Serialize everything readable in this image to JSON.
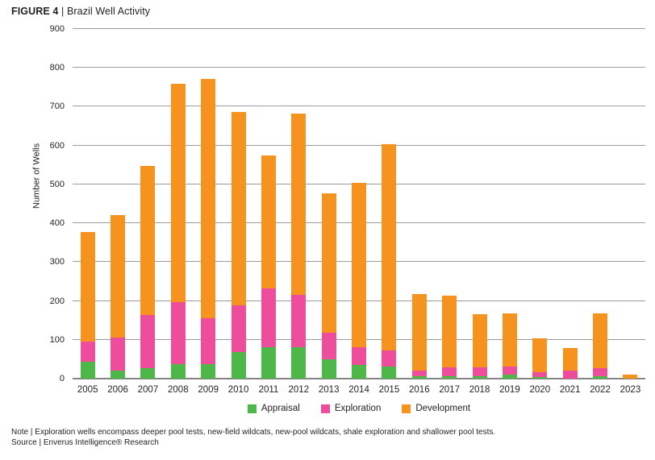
{
  "header": {
    "figure_label": "FIGURE 4",
    "separator": " | ",
    "title": "Brazil Well Activity"
  },
  "footer": {
    "note": "Note | Exploration wells encompass deeper pool tests, new-field wildcats, new-pool wildcats, shale exploration and shallower pool tests.",
    "source": "Source | Enverus Intelligence® Research"
  },
  "colors": {
    "appraisal": "#4DB748",
    "exploration": "#EE4D9B",
    "development": "#F6921E",
    "gridline": "#9B9B9B",
    "baseline": "#848484",
    "text": "#231F20"
  },
  "chart_data": {
    "type": "bar",
    "stacked": true,
    "title": "Brazil Well Activity",
    "xlabel": "",
    "ylabel": "Number of Wells",
    "ylim": [
      0,
      900
    ],
    "ytick_step": 100,
    "grid": "horizontal",
    "legend_position": "bottom",
    "categories": [
      "2005",
      "2006",
      "2007",
      "2008",
      "2009",
      "2010",
      "2011",
      "2012",
      "2013",
      "2014",
      "2015",
      "2016",
      "2017",
      "2018",
      "2019",
      "2020",
      "2021",
      "2022",
      "2023"
    ],
    "series": [
      {
        "name": "Appraisal",
        "color": "#4DB748",
        "values": [
          43,
          20,
          28,
          38,
          37,
          69,
          80,
          80,
          50,
          35,
          32,
          7,
          6,
          6,
          11,
          4,
          0,
          7,
          0
        ]
      },
      {
        "name": "Exploration",
        "color": "#EE4D9B",
        "values": [
          53,
          86,
          135,
          160,
          118,
          119,
          153,
          135,
          68,
          46,
          40,
          13,
          24,
          23,
          21,
          13,
          20,
          19,
          0
        ]
      },
      {
        "name": "Development",
        "color": "#F6921E",
        "values": [
          282,
          315,
          385,
          562,
          617,
          498,
          342,
          467,
          360,
          424,
          531,
          198,
          183,
          136,
          135,
          86,
          58,
          141,
          10
        ]
      }
    ],
    "totals": [
      378,
      421,
      548,
      760,
      772,
      686,
      575,
      682,
      478,
      505,
      603,
      218,
      213,
      165,
      167,
      103,
      78,
      167,
      10
    ]
  }
}
